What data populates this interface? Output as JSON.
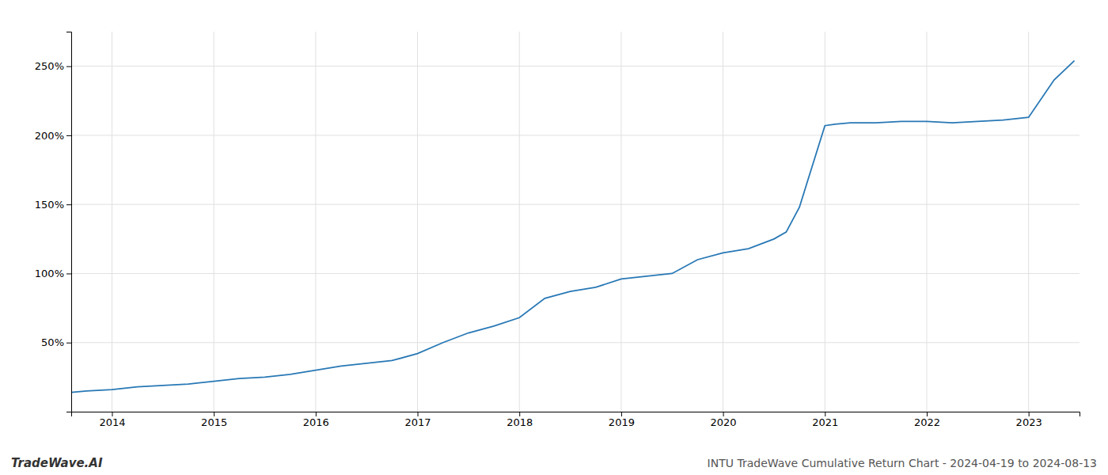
{
  "chart_data": {
    "type": "line",
    "title": "INTU TradeWave Cumulative Return Chart - 2024-04-19 to 2024-08-13",
    "annotations": [
      "TradeWave.AI"
    ],
    "color": "#2878b5",
    "grid": true,
    "x": [
      2013.6,
      2013.75,
      2014.0,
      2014.25,
      2014.5,
      2014.75,
      2015.0,
      2015.25,
      2015.5,
      2015.75,
      2016.0,
      2016.25,
      2016.5,
      2016.75,
      2017.0,
      2017.25,
      2017.5,
      2017.75,
      2018.0,
      2018.25,
      2018.5,
      2018.75,
      2019.0,
      2019.25,
      2019.5,
      2019.75,
      2020.0,
      2020.25,
      2020.5,
      2020.62,
      2020.75,
      2021.0,
      2021.1,
      2021.25,
      2021.5,
      2021.75,
      2022.0,
      2022.25,
      2022.5,
      2022.75,
      2023.0,
      2023.25,
      2023.45
    ],
    "values": [
      14,
      15,
      16,
      18,
      19,
      20,
      22,
      24,
      25,
      27,
      30,
      33,
      35,
      37,
      42,
      50,
      57,
      62,
      68,
      82,
      87,
      90,
      96,
      98,
      100,
      110,
      115,
      118,
      125,
      130,
      148,
      207,
      208,
      209,
      209,
      210,
      210,
      209,
      210,
      211,
      213,
      240,
      254
    ],
    "xlim": [
      2013.6,
      2023.5
    ],
    "xticks": [
      2014,
      2015,
      2016,
      2017,
      2018,
      2019,
      2020,
      2021,
      2022,
      2023
    ],
    "ylim": [
      0,
      275
    ],
    "yticks": [
      {
        "value": 50,
        "label": "50%"
      },
      {
        "value": 100,
        "label": "100%"
      },
      {
        "value": 150,
        "label": "150%"
      },
      {
        "value": 200,
        "label": "200%"
      },
      {
        "value": 250,
        "label": "250%"
      }
    ]
  }
}
